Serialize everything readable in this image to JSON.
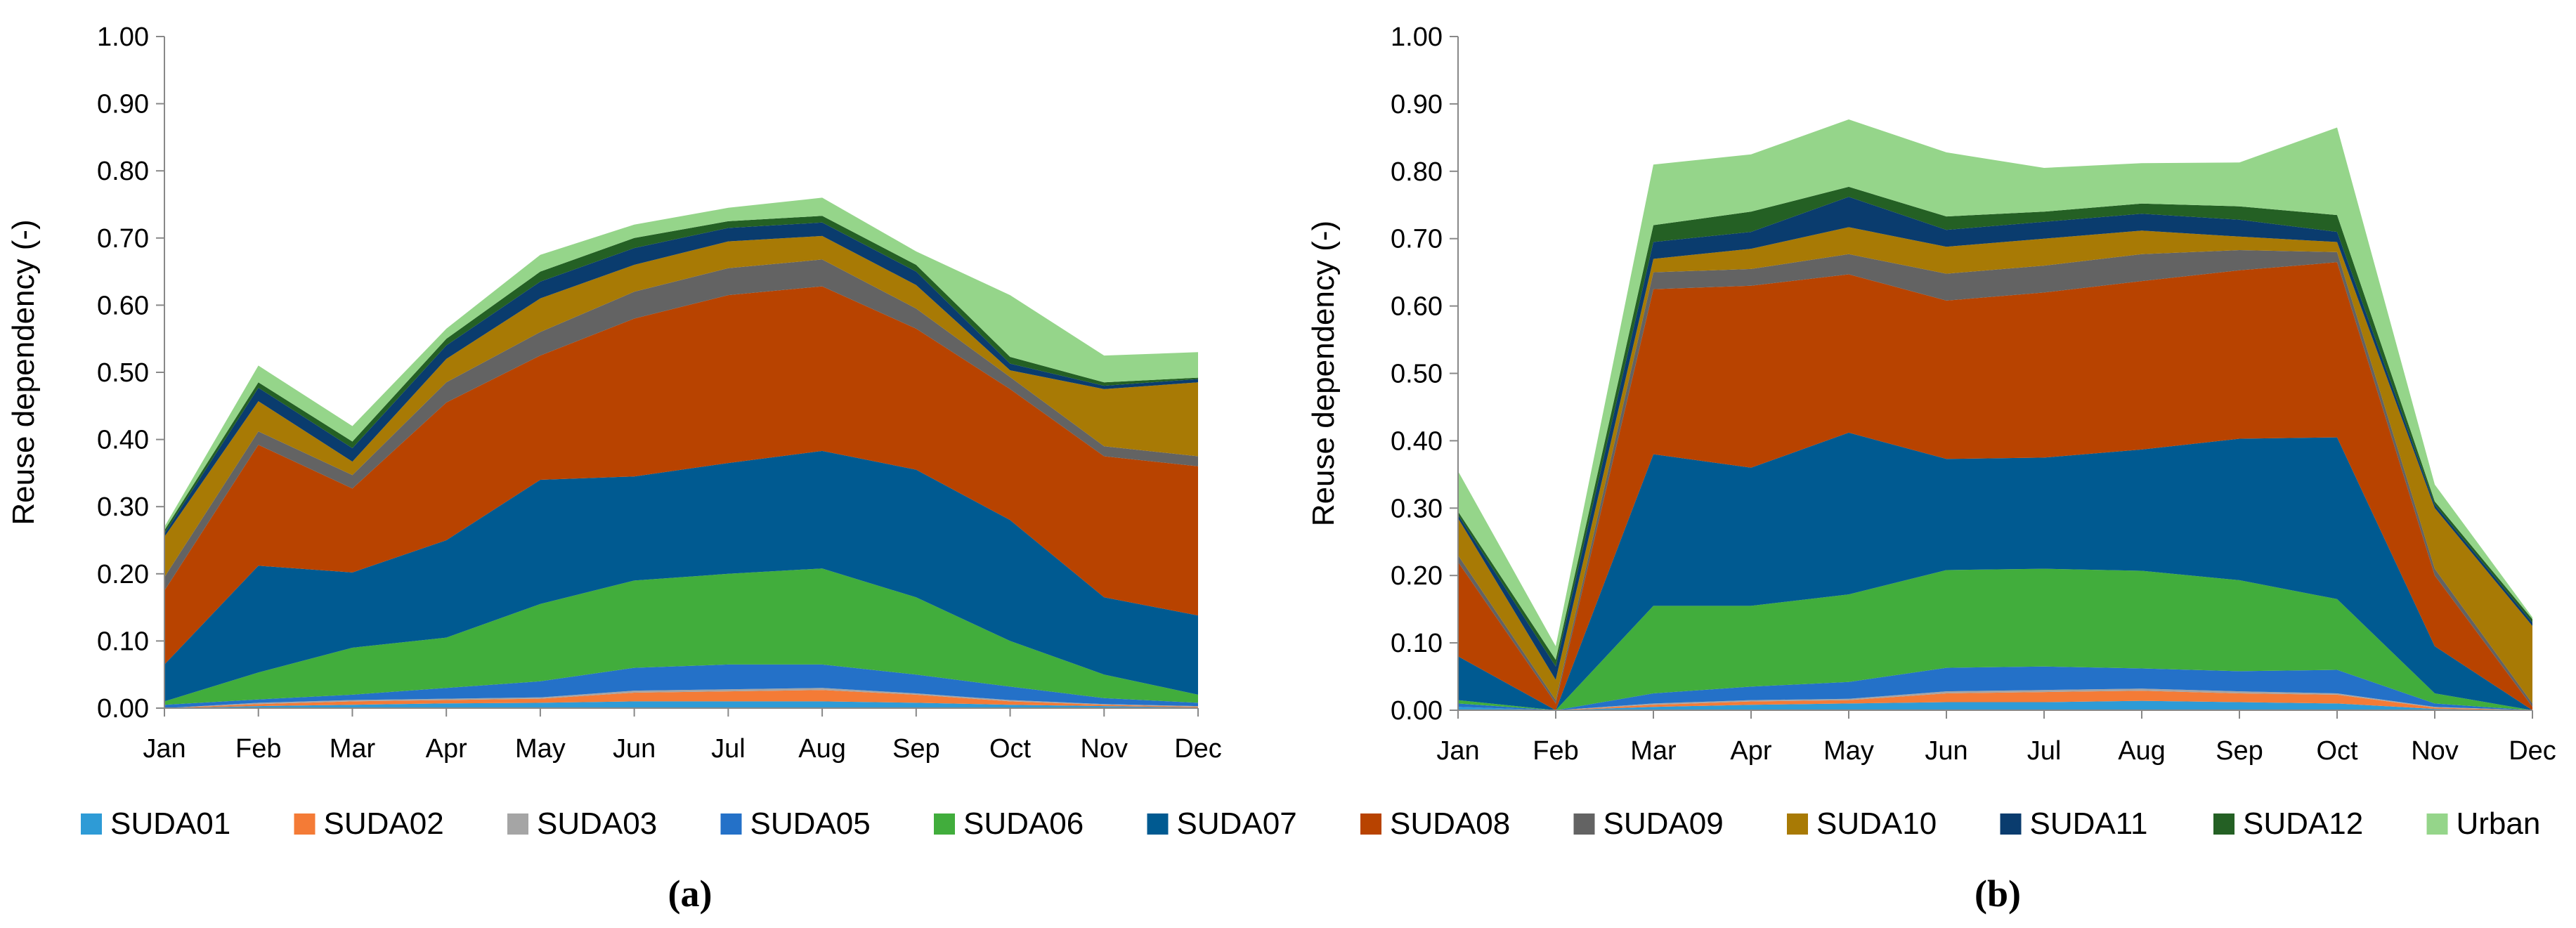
{
  "figure": {
    "panels": [
      "(a)",
      "(b)"
    ]
  },
  "legend": [
    {
      "name": "SUDA01",
      "color": "#2E9BD6"
    },
    {
      "name": "SUDA02",
      "color": "#F47B36"
    },
    {
      "name": "SUDA03",
      "color": "#A5A5A5"
    },
    {
      "name": "SUDA05",
      "color": "#2471C8"
    },
    {
      "name": "SUDA06",
      "color": "#41AD3C"
    },
    {
      "name": "SUDA07",
      "color": "#005A91"
    },
    {
      "name": "SUDA08",
      "color": "#B84300"
    },
    {
      "name": "SUDA09",
      "color": "#636363"
    },
    {
      "name": "SUDA10",
      "color": "#A87A05"
    },
    {
      "name": "SUDA11",
      "color": "#0A3C6E"
    },
    {
      "name": "SUDA12",
      "color": "#246024"
    },
    {
      "name": "Urban",
      "color": "#95D58A"
    }
  ],
  "chart_data": [
    {
      "type": "area",
      "stacked": true,
      "panel": "(a)",
      "title": "",
      "xlabel": "",
      "ylabel": "Reuse dependency (-)",
      "ylim": [
        0,
        1
      ],
      "yticks": [
        "0.00",
        "0.10",
        "0.20",
        "0.30",
        "0.40",
        "0.50",
        "0.60",
        "0.70",
        "0.80",
        "0.90",
        "1.00"
      ],
      "categories": [
        "Jan",
        "Feb",
        "Mar",
        "Apr",
        "May",
        "Jun",
        "Jul",
        "Aug",
        "Sep",
        "Oct",
        "Nov",
        "Dec"
      ],
      "series": [
        {
          "name": "SUDA01",
          "values": [
            0.0,
            0.003,
            0.005,
            0.007,
            0.008,
            0.01,
            0.01,
            0.01,
            0.008,
            0.005,
            0.003,
            0.001
          ]
        },
        {
          "name": "SUDA02",
          "values": [
            0.0,
            0.003,
            0.005,
            0.005,
            0.006,
            0.013,
            0.015,
            0.017,
            0.012,
            0.005,
            0.002,
            0.001
          ]
        },
        {
          "name": "SUDA03",
          "values": [
            0.0,
            0.002,
            0.002,
            0.002,
            0.002,
            0.003,
            0.003,
            0.003,
            0.002,
            0.002,
            0.001,
            0.001
          ]
        },
        {
          "name": "SUDA05",
          "values": [
            0.005,
            0.005,
            0.008,
            0.016,
            0.024,
            0.034,
            0.037,
            0.035,
            0.028,
            0.02,
            0.009,
            0.005
          ]
        },
        {
          "name": "SUDA06",
          "values": [
            0.005,
            0.04,
            0.07,
            0.075,
            0.115,
            0.13,
            0.135,
            0.143,
            0.115,
            0.068,
            0.035,
            0.012
          ]
        },
        {
          "name": "SUDA07",
          "values": [
            0.055,
            0.159,
            0.112,
            0.145,
            0.185,
            0.155,
            0.165,
            0.175,
            0.19,
            0.18,
            0.115,
            0.118
          ]
        },
        {
          "name": "SUDA08",
          "values": [
            0.11,
            0.18,
            0.125,
            0.205,
            0.185,
            0.235,
            0.25,
            0.245,
            0.21,
            0.195,
            0.21,
            0.222
          ]
        },
        {
          "name": "SUDA09",
          "values": [
            0.02,
            0.02,
            0.02,
            0.03,
            0.035,
            0.04,
            0.04,
            0.04,
            0.03,
            0.018,
            0.015,
            0.015
          ]
        },
        {
          "name": "SUDA10",
          "values": [
            0.06,
            0.045,
            0.02,
            0.035,
            0.05,
            0.04,
            0.04,
            0.035,
            0.035,
            0.01,
            0.085,
            0.11
          ]
        },
        {
          "name": "SUDA11",
          "values": [
            0.005,
            0.02,
            0.02,
            0.02,
            0.025,
            0.025,
            0.02,
            0.02,
            0.02,
            0.01,
            0.005,
            0.005
          ]
        },
        {
          "name": "SUDA12",
          "values": [
            0.005,
            0.008,
            0.01,
            0.01,
            0.015,
            0.015,
            0.01,
            0.01,
            0.01,
            0.01,
            0.005,
            0.002
          ]
        },
        {
          "name": "Urban",
          "values": [
            0.005,
            0.025,
            0.023,
            0.015,
            0.025,
            0.02,
            0.02,
            0.027,
            0.02,
            0.092,
            0.04,
            0.038
          ]
        }
      ]
    },
    {
      "type": "area",
      "stacked": true,
      "panel": "(b)",
      "title": "",
      "xlabel": "",
      "ylabel": "Reuse dependency (-)",
      "ylim": [
        0,
        1
      ],
      "yticks": [
        "0.00",
        "0.10",
        "0.20",
        "0.30",
        "0.40",
        "0.50",
        "0.60",
        "0.70",
        "0.80",
        "0.90",
        "1.00"
      ],
      "categories": [
        "Jan",
        "Feb",
        "Mar",
        "Apr",
        "May",
        "Jun",
        "Jul",
        "Aug",
        "Sep",
        "Oct",
        "Nov",
        "Dec"
      ],
      "series": [
        {
          "name": "SUDA01",
          "values": [
            0.005,
            0.0,
            0.005,
            0.008,
            0.01,
            0.012,
            0.012,
            0.014,
            0.012,
            0.01,
            0.002,
            0.0
          ]
        },
        {
          "name": "SUDA02",
          "values": [
            0.0,
            0.0,
            0.003,
            0.005,
            0.005,
            0.013,
            0.015,
            0.015,
            0.013,
            0.013,
            0.002,
            0.0
          ]
        },
        {
          "name": "SUDA03",
          "values": [
            0.0,
            0.0,
            0.002,
            0.002,
            0.002,
            0.003,
            0.003,
            0.003,
            0.003,
            0.002,
            0.001,
            0.0
          ]
        },
        {
          "name": "SUDA05",
          "values": [
            0.005,
            0.0,
            0.015,
            0.02,
            0.025,
            0.035,
            0.035,
            0.03,
            0.03,
            0.035,
            0.005,
            0.0
          ]
        },
        {
          "name": "SUDA06",
          "values": [
            0.005,
            0.0,
            0.13,
            0.12,
            0.13,
            0.145,
            0.145,
            0.145,
            0.135,
            0.105,
            0.015,
            0.0
          ]
        },
        {
          "name": "SUDA07",
          "values": [
            0.065,
            0.0,
            0.225,
            0.205,
            0.24,
            0.165,
            0.165,
            0.18,
            0.21,
            0.24,
            0.07,
            0.0
          ]
        },
        {
          "name": "SUDA08",
          "values": [
            0.14,
            0.01,
            0.245,
            0.27,
            0.235,
            0.235,
            0.245,
            0.25,
            0.25,
            0.26,
            0.105,
            0.005
          ]
        },
        {
          "name": "SUDA09",
          "values": [
            0.01,
            0.005,
            0.025,
            0.025,
            0.03,
            0.04,
            0.04,
            0.04,
            0.03,
            0.015,
            0.01,
            0.005
          ]
        },
        {
          "name": "SUDA10",
          "values": [
            0.055,
            0.03,
            0.02,
            0.03,
            0.04,
            0.04,
            0.04,
            0.035,
            0.02,
            0.015,
            0.09,
            0.115
          ]
        },
        {
          "name": "SUDA11",
          "values": [
            0.005,
            0.02,
            0.025,
            0.025,
            0.045,
            0.025,
            0.025,
            0.025,
            0.025,
            0.015,
            0.005,
            0.005
          ]
        },
        {
          "name": "SUDA12",
          "values": [
            0.005,
            0.01,
            0.025,
            0.03,
            0.015,
            0.02,
            0.015,
            0.015,
            0.02,
            0.025,
            0.005,
            0.005
          ]
        },
        {
          "name": "Urban",
          "values": [
            0.06,
            0.02,
            0.09,
            0.085,
            0.1,
            0.095,
            0.065,
            0.06,
            0.065,
            0.13,
            0.025,
            0.003
          ]
        }
      ]
    }
  ]
}
